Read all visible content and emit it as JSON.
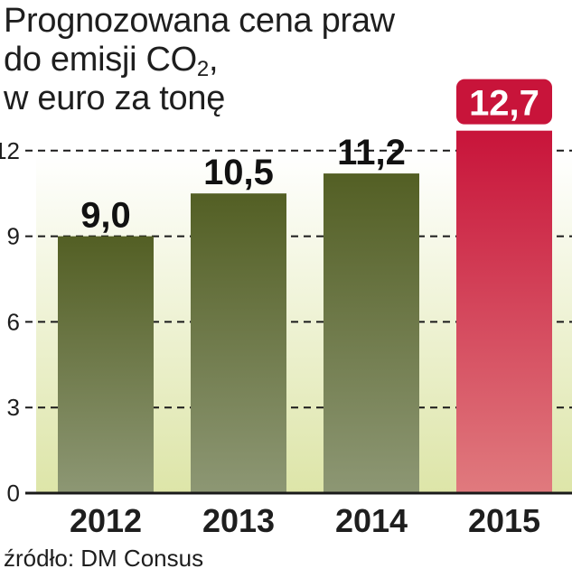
{
  "title": {
    "line1": "Prognozowana cena praw",
    "line2_main": "do emisji CO",
    "line2_sub": "2",
    "line2_end": ",",
    "line3": "w euro za tonę"
  },
  "source": "źródło: DM Consus",
  "colors": {
    "bar_green_top": "#535f24",
    "bar_green_bottom": "#8d9774",
    "bar_red_top": "#c8143a",
    "bar_red_bottom": "#e07a7e",
    "highlight_label_bg": "#c8143a",
    "bg_gradient_bottom": "#dde5a8"
  },
  "chart_data": {
    "type": "bar",
    "categories": [
      "2012",
      "2013",
      "2014",
      "2015"
    ],
    "values": [
      9.0,
      10.5,
      11.2,
      12.7
    ],
    "value_labels": [
      "9,0",
      "10,5",
      "11,2",
      "12,7"
    ],
    "highlight_index": 3,
    "yticks": [
      "0",
      "3",
      "6",
      "9",
      "12"
    ],
    "ytick_values": [
      0,
      3,
      6,
      9,
      12
    ],
    "ylim": [
      0,
      12.7
    ],
    "grid": true
  }
}
